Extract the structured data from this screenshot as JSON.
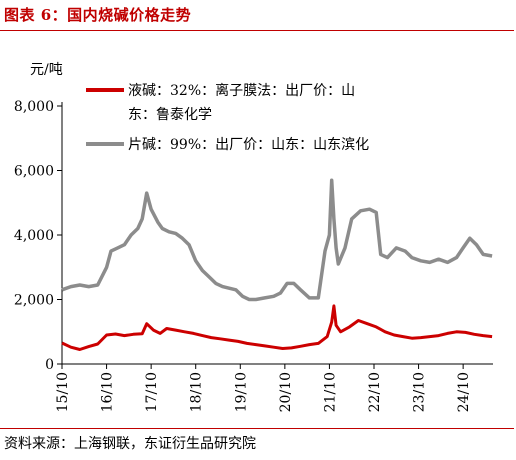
{
  "header": {
    "title": "图表 6：国内烧碱价格走势"
  },
  "footer": {
    "source": "资料来源：上海钢联，东证衍生品研究院"
  },
  "chart_data": {
    "type": "line",
    "title": "图表 6：国内烧碱价格走势",
    "ylabel": "元/吨",
    "ylim": [
      0,
      8000
    ],
    "yticks": [
      0,
      2000,
      4000,
      6000,
      8000
    ],
    "ytick_labels": [
      "0",
      "2,000",
      "4,000",
      "6,000",
      "8,000"
    ],
    "xlim": [
      2015.75,
      2025.42
    ],
    "xticks": [
      2015.75,
      2016.75,
      2017.75,
      2018.75,
      2019.75,
      2020.75,
      2021.75,
      2022.75,
      2023.75,
      2024.75
    ],
    "xtick_labels": [
      "15/10",
      "16/10",
      "17/10",
      "18/10",
      "19/10",
      "20/10",
      "21/10",
      "22/10",
      "23/10",
      "24/10"
    ],
    "legend_position": "top-left",
    "series": [
      {
        "name": "液碱：32%：离子膜法：出厂价：山东：鲁泰化学",
        "color": "#cc0000",
        "points": [
          [
            2015.75,
            650
          ],
          [
            2015.95,
            520
          ],
          [
            2016.15,
            450
          ],
          [
            2016.35,
            540
          ],
          [
            2016.55,
            620
          ],
          [
            2016.75,
            900
          ],
          [
            2016.95,
            930
          ],
          [
            2017.15,
            880
          ],
          [
            2017.35,
            920
          ],
          [
            2017.55,
            940
          ],
          [
            2017.65,
            1250
          ],
          [
            2017.8,
            1050
          ],
          [
            2017.95,
            950
          ],
          [
            2018.1,
            1100
          ],
          [
            2018.3,
            1050
          ],
          [
            2018.5,
            1000
          ],
          [
            2018.7,
            950
          ],
          [
            2018.9,
            880
          ],
          [
            2019.1,
            820
          ],
          [
            2019.3,
            780
          ],
          [
            2019.5,
            740
          ],
          [
            2019.7,
            700
          ],
          [
            2019.9,
            640
          ],
          [
            2020.1,
            600
          ],
          [
            2020.3,
            560
          ],
          [
            2020.5,
            520
          ],
          [
            2020.7,
            480
          ],
          [
            2020.9,
            500
          ],
          [
            2021.1,
            550
          ],
          [
            2021.3,
            600
          ],
          [
            2021.5,
            640
          ],
          [
            2021.7,
            850
          ],
          [
            2021.8,
            1300
          ],
          [
            2021.85,
            1800
          ],
          [
            2021.9,
            1200
          ],
          [
            2022.0,
            1000
          ],
          [
            2022.2,
            1150
          ],
          [
            2022.4,
            1350
          ],
          [
            2022.6,
            1250
          ],
          [
            2022.8,
            1150
          ],
          [
            2023.0,
            1000
          ],
          [
            2023.2,
            900
          ],
          [
            2023.4,
            850
          ],
          [
            2023.6,
            800
          ],
          [
            2023.8,
            820
          ],
          [
            2024.0,
            850
          ],
          [
            2024.2,
            880
          ],
          [
            2024.4,
            950
          ],
          [
            2024.6,
            1000
          ],
          [
            2024.8,
            980
          ],
          [
            2025.0,
            920
          ],
          [
            2025.2,
            880
          ],
          [
            2025.4,
            850
          ]
        ]
      },
      {
        "name": "片碱：99%：出厂价：山东：山东滨化",
        "color": "#8c8c8c",
        "points": [
          [
            2015.75,
            2300
          ],
          [
            2015.95,
            2400
          ],
          [
            2016.15,
            2450
          ],
          [
            2016.35,
            2400
          ],
          [
            2016.55,
            2450
          ],
          [
            2016.75,
            3000
          ],
          [
            2016.85,
            3500
          ],
          [
            2017.0,
            3600
          ],
          [
            2017.15,
            3700
          ],
          [
            2017.3,
            4000
          ],
          [
            2017.45,
            4200
          ],
          [
            2017.55,
            4500
          ],
          [
            2017.65,
            5300
          ],
          [
            2017.75,
            4800
          ],
          [
            2017.9,
            4400
          ],
          [
            2018.0,
            4200
          ],
          [
            2018.15,
            4100
          ],
          [
            2018.3,
            4050
          ],
          [
            2018.45,
            3900
          ],
          [
            2018.6,
            3700
          ],
          [
            2018.75,
            3200
          ],
          [
            2018.9,
            2900
          ],
          [
            2019.05,
            2700
          ],
          [
            2019.2,
            2500
          ],
          [
            2019.35,
            2400
          ],
          [
            2019.5,
            2350
          ],
          [
            2019.65,
            2300
          ],
          [
            2019.8,
            2100
          ],
          [
            2019.95,
            2000
          ],
          [
            2020.1,
            2000
          ],
          [
            2020.3,
            2050
          ],
          [
            2020.5,
            2100
          ],
          [
            2020.65,
            2200
          ],
          [
            2020.8,
            2500
          ],
          [
            2020.95,
            2500
          ],
          [
            2021.1,
            2300
          ],
          [
            2021.3,
            2050
          ],
          [
            2021.5,
            2050
          ],
          [
            2021.65,
            3500
          ],
          [
            2021.75,
            4000
          ],
          [
            2021.8,
            5700
          ],
          [
            2021.85,
            4500
          ],
          [
            2021.9,
            3600
          ],
          [
            2021.95,
            3100
          ],
          [
            2022.1,
            3600
          ],
          [
            2022.25,
            4500
          ],
          [
            2022.45,
            4750
          ],
          [
            2022.65,
            4800
          ],
          [
            2022.8,
            4700
          ],
          [
            2022.9,
            3400
          ],
          [
            2023.05,
            3300
          ],
          [
            2023.25,
            3600
          ],
          [
            2023.45,
            3500
          ],
          [
            2023.6,
            3300
          ],
          [
            2023.8,
            3200
          ],
          [
            2024.0,
            3150
          ],
          [
            2024.2,
            3250
          ],
          [
            2024.4,
            3150
          ],
          [
            2024.6,
            3300
          ],
          [
            2024.75,
            3600
          ],
          [
            2024.9,
            3900
          ],
          [
            2025.05,
            3700
          ],
          [
            2025.2,
            3400
          ],
          [
            2025.4,
            3350
          ]
        ]
      }
    ]
  }
}
